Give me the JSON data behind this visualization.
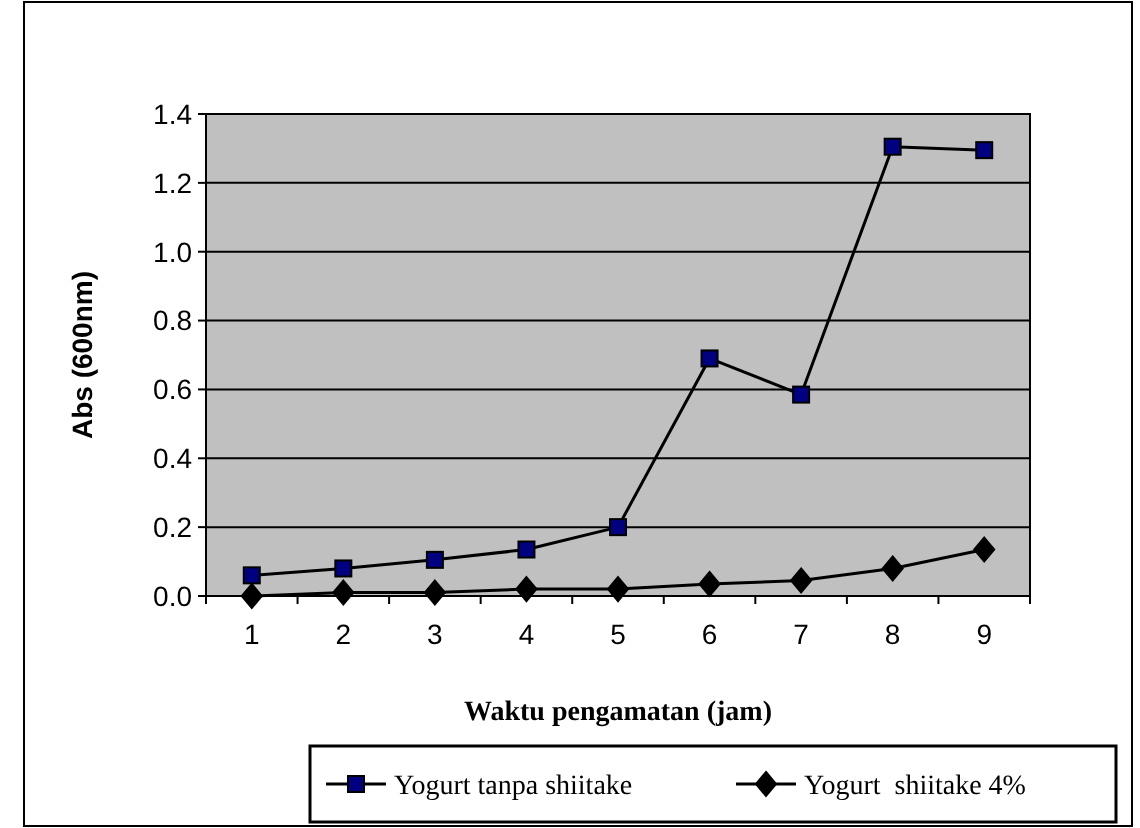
{
  "chart_data": {
    "type": "line",
    "xlabel": "Waktu pengamatan (jam)",
    "ylabel": "Abs (600nm)",
    "categories": [
      "1",
      "2",
      "3",
      "4",
      "5",
      "6",
      "7",
      "8",
      "9"
    ],
    "series": [
      {
        "name": "Yogurt tanpa shiitake",
        "color": "#000080",
        "marker": "square",
        "values": [
          0.06,
          0.08,
          0.105,
          0.135,
          0.2,
          0.69,
          0.585,
          1.305,
          1.295
        ]
      },
      {
        "name": "Yogurt  shiitake 4%",
        "color": "#000000",
        "marker": "diamond",
        "values": [
          0.0,
          0.01,
          0.01,
          0.02,
          0.02,
          0.035,
          0.045,
          0.08,
          0.135
        ]
      }
    ],
    "ylim": [
      0,
      1.4
    ],
    "yticks": [
      {
        "value": 0,
        "label": "0.0"
      },
      {
        "value": 0.2,
        "label": "0.2"
      },
      {
        "value": 0.4,
        "label": "0.4"
      },
      {
        "value": 0.6,
        "label": "0.6"
      },
      {
        "value": 0.8,
        "label": "0.8"
      },
      {
        "value": 1,
        "label": "1.0"
      },
      {
        "value": 1.2,
        "label": "1.2"
      },
      {
        "value": 1.4,
        "label": "1.4"
      }
    ],
    "grid": "y",
    "legend": "bottom",
    "line_style": "solid"
  }
}
